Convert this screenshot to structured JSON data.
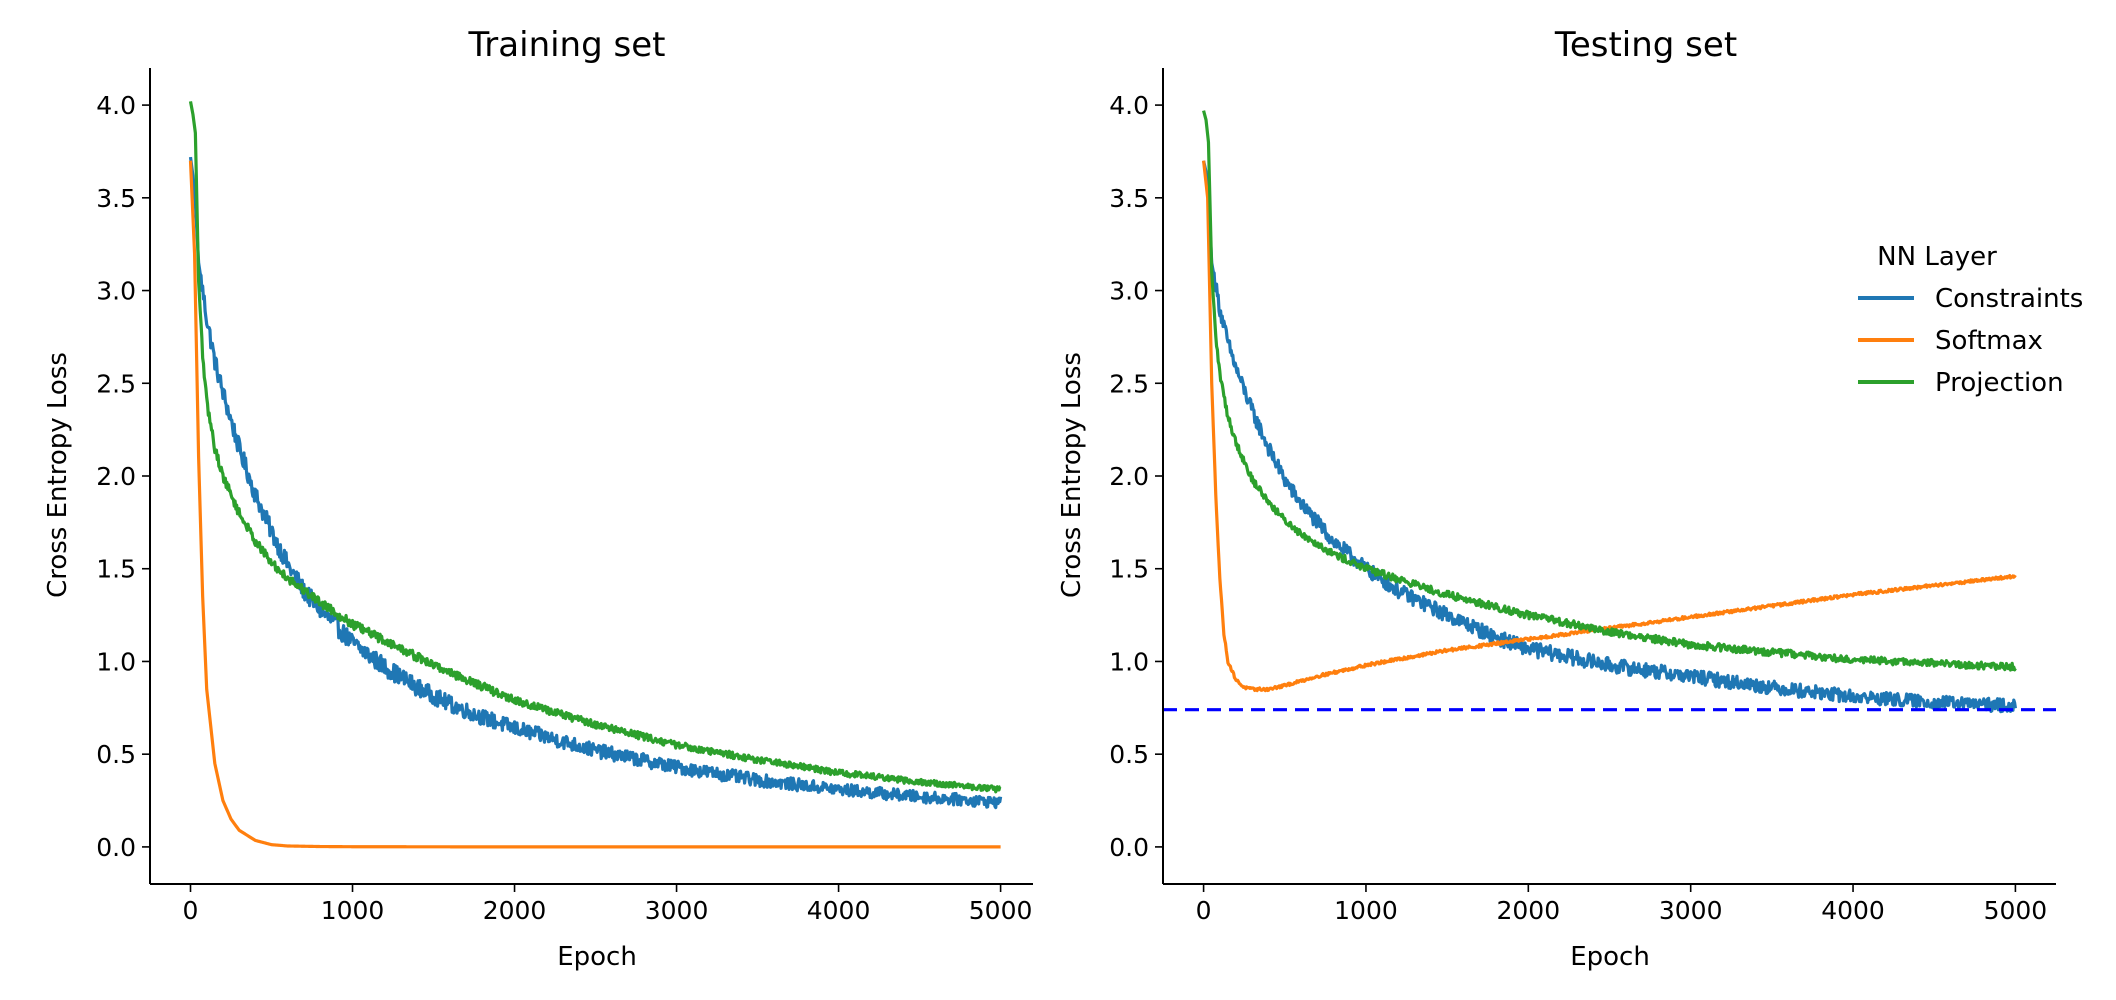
{
  "chart_data": [
    {
      "type": "line",
      "title": "Training set",
      "xlabel": "Epoch",
      "ylabel": "Cross Entropy Loss",
      "xlim": [
        -250,
        5200
      ],
      "ylim": [
        -0.2,
        4.2
      ],
      "xticks": [
        0,
        1000,
        2000,
        3000,
        4000,
        5000
      ],
      "xtick_labels": [
        "0",
        "1000",
        "2000",
        "3000",
        "4000",
        "5000"
      ],
      "yticks": [
        0.0,
        0.5,
        1.0,
        1.5,
        2.0,
        2.5,
        3.0,
        3.5,
        4.0
      ],
      "ytick_labels": [
        "0.0",
        "0.5",
        "1.0",
        "1.5",
        "2.0",
        "2.5",
        "3.0",
        "3.5",
        "4.0"
      ],
      "grid": false,
      "series": [
        {
          "name": "Constraints",
          "color": "#1f77b4",
          "x": [
            0,
            25,
            50,
            100,
            150,
            200,
            300,
            400,
            500,
            600,
            700,
            800,
            1000,
            1200,
            1400,
            1600,
            1800,
            2000,
            2500,
            3000,
            3500,
            4000,
            4500,
            5000
          ],
          "y": [
            3.72,
            3.55,
            3.15,
            2.85,
            2.62,
            2.45,
            2.15,
            1.9,
            1.7,
            1.52,
            1.38,
            1.28,
            1.1,
            0.97,
            0.86,
            0.77,
            0.7,
            0.64,
            0.52,
            0.43,
            0.36,
            0.31,
            0.27,
            0.24
          ],
          "noise": 0.025
        },
        {
          "name": "Softmax",
          "color": "#ff7f0e",
          "x": [
            0,
            25,
            50,
            75,
            100,
            150,
            200,
            250,
            300,
            400,
            500,
            600,
            800,
            1000,
            2000,
            3000,
            4000,
            5000
          ],
          "y": [
            3.7,
            3.2,
            2.1,
            1.35,
            0.85,
            0.45,
            0.25,
            0.15,
            0.09,
            0.035,
            0.012,
            0.005,
            0.002,
            0.001,
            0.0,
            0.0,
            0.0,
            0.0
          ],
          "noise": 0
        },
        {
          "name": "Projection",
          "color": "#2ca02c",
          "x": [
            0,
            15,
            30,
            50,
            75,
            100,
            150,
            200,
            300,
            400,
            500,
            600,
            800,
            1000,
            1500,
            2000,
            2500,
            3000,
            3500,
            4000,
            4500,
            5000
          ],
          "y": [
            4.02,
            3.95,
            3.85,
            3.05,
            2.65,
            2.4,
            2.15,
            2.0,
            1.8,
            1.65,
            1.53,
            1.45,
            1.32,
            1.2,
            0.98,
            0.79,
            0.66,
            0.55,
            0.47,
            0.4,
            0.35,
            0.31
          ],
          "noise": 0.012
        }
      ]
    },
    {
      "type": "line",
      "title": "Testing set",
      "xlabel": "Epoch",
      "ylabel": "Cross Entropy Loss",
      "xlim": [
        -250,
        5250
      ],
      "ylim": [
        -0.2,
        4.2
      ],
      "xticks": [
        0,
        1000,
        2000,
        3000,
        4000,
        5000
      ],
      "xtick_labels": [
        "0",
        "1000",
        "2000",
        "3000",
        "4000",
        "5000"
      ],
      "yticks": [
        0.0,
        0.5,
        1.0,
        1.5,
        2.0,
        2.5,
        3.0,
        3.5,
        4.0
      ],
      "ytick_labels": [
        "0.0",
        "0.5",
        "1.0",
        "1.5",
        "2.0",
        "2.5",
        "3.0",
        "3.5",
        "4.0"
      ],
      "grid": false,
      "hline": {
        "y": 0.74,
        "color": "#0000ff",
        "style": "dashed"
      },
      "series": [
        {
          "name": "Constraints",
          "color": "#1f77b4",
          "x": [
            0,
            25,
            50,
            100,
            150,
            200,
            300,
            400,
            500,
            600,
            800,
            1000,
            1200,
            1500,
            1800,
            2000,
            2500,
            3000,
            3500,
            4000,
            4500,
            5000
          ],
          "y": [
            3.7,
            3.6,
            3.15,
            2.9,
            2.72,
            2.58,
            2.35,
            2.15,
            1.98,
            1.85,
            1.65,
            1.5,
            1.38,
            1.25,
            1.13,
            1.07,
            0.98,
            0.92,
            0.86,
            0.81,
            0.78,
            0.76
          ],
          "noise": 0.02
        },
        {
          "name": "Softmax",
          "color": "#ff7f0e",
          "x": [
            0,
            25,
            50,
            75,
            100,
            125,
            150,
            200,
            250,
            300,
            400,
            500,
            700,
            1000,
            1500,
            2000,
            2500,
            3000,
            3500,
            4000,
            4500,
            5000
          ],
          "y": [
            3.7,
            3.5,
            2.5,
            1.9,
            1.45,
            1.15,
            1.0,
            0.9,
            0.86,
            0.85,
            0.85,
            0.87,
            0.92,
            0.98,
            1.06,
            1.12,
            1.18,
            1.24,
            1.3,
            1.36,
            1.41,
            1.46
          ],
          "noise": 0.004
        },
        {
          "name": "Projection",
          "color": "#2ca02c",
          "x": [
            0,
            15,
            30,
            50,
            75,
            100,
            150,
            200,
            300,
            400,
            500,
            600,
            800,
            1000,
            1500,
            2000,
            2500,
            3000,
            3500,
            4000,
            4500,
            5000
          ],
          "y": [
            3.97,
            3.92,
            3.8,
            3.1,
            2.75,
            2.55,
            2.32,
            2.18,
            1.98,
            1.86,
            1.76,
            1.69,
            1.58,
            1.5,
            1.36,
            1.25,
            1.16,
            1.09,
            1.05,
            1.01,
            0.99,
            0.97
          ],
          "noise": 0.01
        }
      ]
    }
  ],
  "legend": {
    "title": "NN Layer",
    "entries": [
      {
        "label": "Constraints",
        "color": "#1f77b4"
      },
      {
        "label": "Softmax",
        "color": "#ff7f0e"
      },
      {
        "label": "Projection",
        "color": "#2ca02c"
      }
    ],
    "placement": "upper-right of second panel, outside axes"
  }
}
